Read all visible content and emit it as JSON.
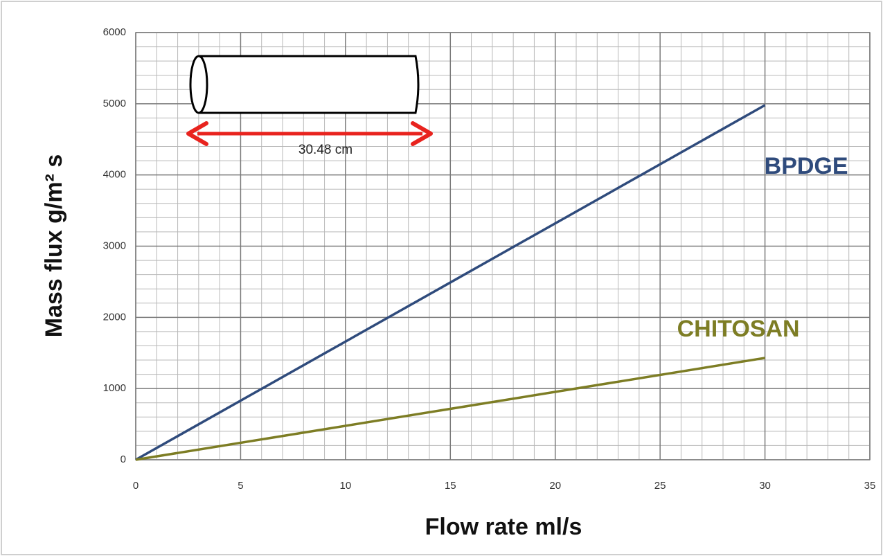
{
  "chart_data": {
    "type": "line",
    "x_label": "Flow rate ml/s",
    "y_label": "Mass flux g/m² s",
    "annotation": "30.48 cm",
    "x": [
      0,
      30
    ],
    "series": [
      {
        "name": "BPDGE",
        "color": "#2f4b7c",
        "values": [
          0,
          4980
        ]
      },
      {
        "name": "CHITOSAN",
        "color": "#7d7d24",
        "values": [
          0,
          1430
        ]
      }
    ],
    "xlim": [
      0,
      35
    ],
    "xticks": [
      0,
      5,
      10,
      15,
      20,
      25,
      30,
      35
    ],
    "ylim": [
      0,
      6000
    ],
    "yticks": [
      0,
      1000,
      2000,
      3000,
      4000,
      5000,
      6000
    ],
    "grid": true
  }
}
